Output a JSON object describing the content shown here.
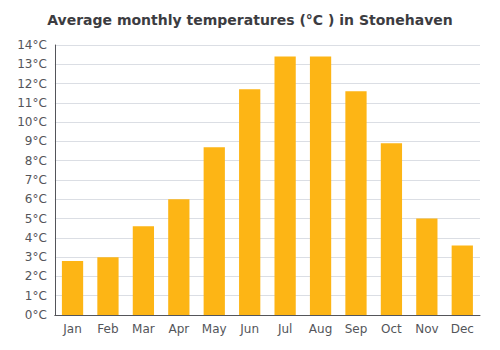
{
  "chart_data": {
    "type": "bar",
    "title": "Average monthly temperatures (°C ) in Stonehaven",
    "categories": [
      "Jan",
      "Feb",
      "Mar",
      "Apr",
      "May",
      "Jun",
      "Jul",
      "Aug",
      "Sep",
      "Oct",
      "Nov",
      "Dec"
    ],
    "values": [
      2.8,
      3.0,
      4.6,
      6.0,
      8.7,
      11.7,
      13.4,
      13.4,
      11.6,
      8.9,
      5.0,
      3.6
    ],
    "color": "#FDB515",
    "ylim": [
      0,
      14
    ],
    "yticks": [
      {
        "value": 0,
        "label": "0°C"
      },
      {
        "value": 1,
        "label": "1°C"
      },
      {
        "value": 2,
        "label": "2°C"
      },
      {
        "value": 3,
        "label": "3°C"
      },
      {
        "value": 4,
        "label": "4°C"
      },
      {
        "value": 5,
        "label": "5°C"
      },
      {
        "value": 6,
        "label": "6°C"
      },
      {
        "value": 7,
        "label": "7°C"
      },
      {
        "value": 8,
        "label": "8°C"
      },
      {
        "value": 9,
        "label": "9°C"
      },
      {
        "value": 10,
        "label": "10°C"
      },
      {
        "value": 11,
        "label": "11°C"
      },
      {
        "value": 12,
        "label": "12°C"
      },
      {
        "value": 13,
        "label": "13°C"
      },
      {
        "value": 14,
        "label": "14°C"
      }
    ],
    "grid": true
  }
}
